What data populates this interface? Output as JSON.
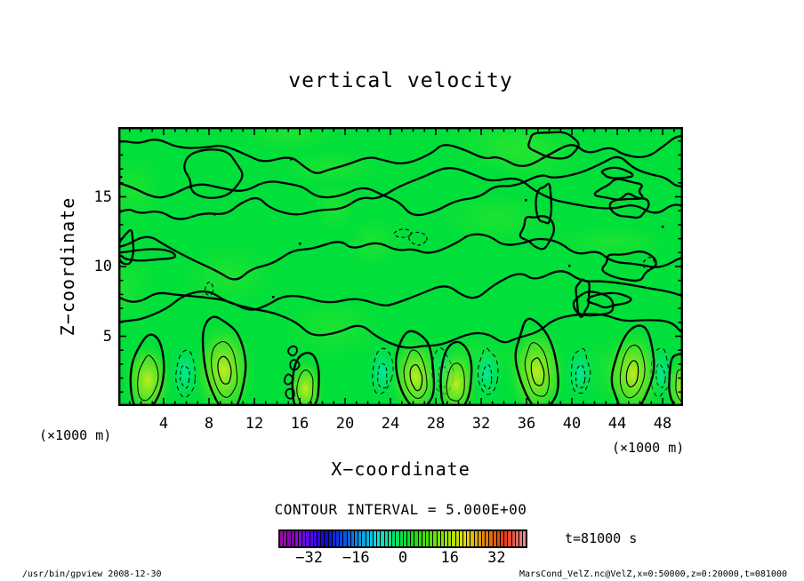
{
  "title": "vertical velocity",
  "axes": {
    "x": {
      "label": "X−coordinate",
      "unit": "(×1000 m)",
      "ticks": [
        4,
        8,
        12,
        16,
        20,
        24,
        28,
        32,
        36,
        40,
        44,
        48
      ],
      "range": [
        0,
        50
      ]
    },
    "z": {
      "label": "Z−coordinate",
      "unit": "(×1000 m)",
      "ticks": [
        5,
        10,
        15
      ],
      "range": [
        0,
        20
      ]
    }
  },
  "contour_note": "CONTOUR INTERVAL = 5.000E+00",
  "time_label": "t=81000 s",
  "footer": {
    "left": "/usr/bin/gpview  2008-12-30",
    "right": "MarsCond_VelZ.nc@VelZ,x=0:50000,z=0:20000,t=081000"
  },
  "colors": {
    "field_green": "#00df3a",
    "updraft_core": "#c9ee1c",
    "texture_green": "#49ea25",
    "downdraft_cyan": "#00e9ac",
    "contour_line": "#000000",
    "colorbar_left_purple": "#8a10a0",
    "colorbar_right_salmon": "#f0a8a0"
  },
  "chart_data": {
    "type": "heatmap",
    "subtype": "filled-contour-plot",
    "title": "vertical velocity",
    "xlabel": "X−coordinate (×1000 m)",
    "ylabel": "Z−coordinate (×1000 m)",
    "x_range": [
      0,
      50
    ],
    "z_range": [
      0,
      20
    ],
    "x_ticks": [
      4,
      8,
      12,
      16,
      20,
      24,
      28,
      32,
      36,
      40,
      44,
      48
    ],
    "z_ticks": [
      5,
      10,
      15
    ],
    "contour_interval": 5.0,
    "time": "t=81000 s",
    "colorbar": {
      "min": -42.5,
      "max": 42.5,
      "tick_values": [
        -32,
        -16,
        0,
        16,
        32
      ],
      "tick_labels": [
        "−32",
        "−16",
        "0",
        "16",
        "32"
      ],
      "segments": 66,
      "palette": "rainbow purple→blue→cyan→green→yellow→orange→red→salmon"
    },
    "field_summary": "velocity ≈ 0 (green) over most of the domain with meandering zero contours; convective updraft plumes (positive, yellow-green cores, solid contours) and downdraft patches (negative, cyan, dashed contours) concentrated below z ≈ 5 km",
    "updraft_plumes_x": [
      2.6,
      9.3,
      16.5,
      26.2,
      29.8,
      36.9,
      45.4,
      49.9
    ],
    "updraft_strength": [
      0.7,
      1.0,
      0.45,
      0.8,
      0.6,
      0.95,
      0.9,
      0.5
    ],
    "downdraft_patches_x": [
      5.9,
      23.3,
      28.6,
      32.5,
      40.7,
      47.8
    ]
  }
}
